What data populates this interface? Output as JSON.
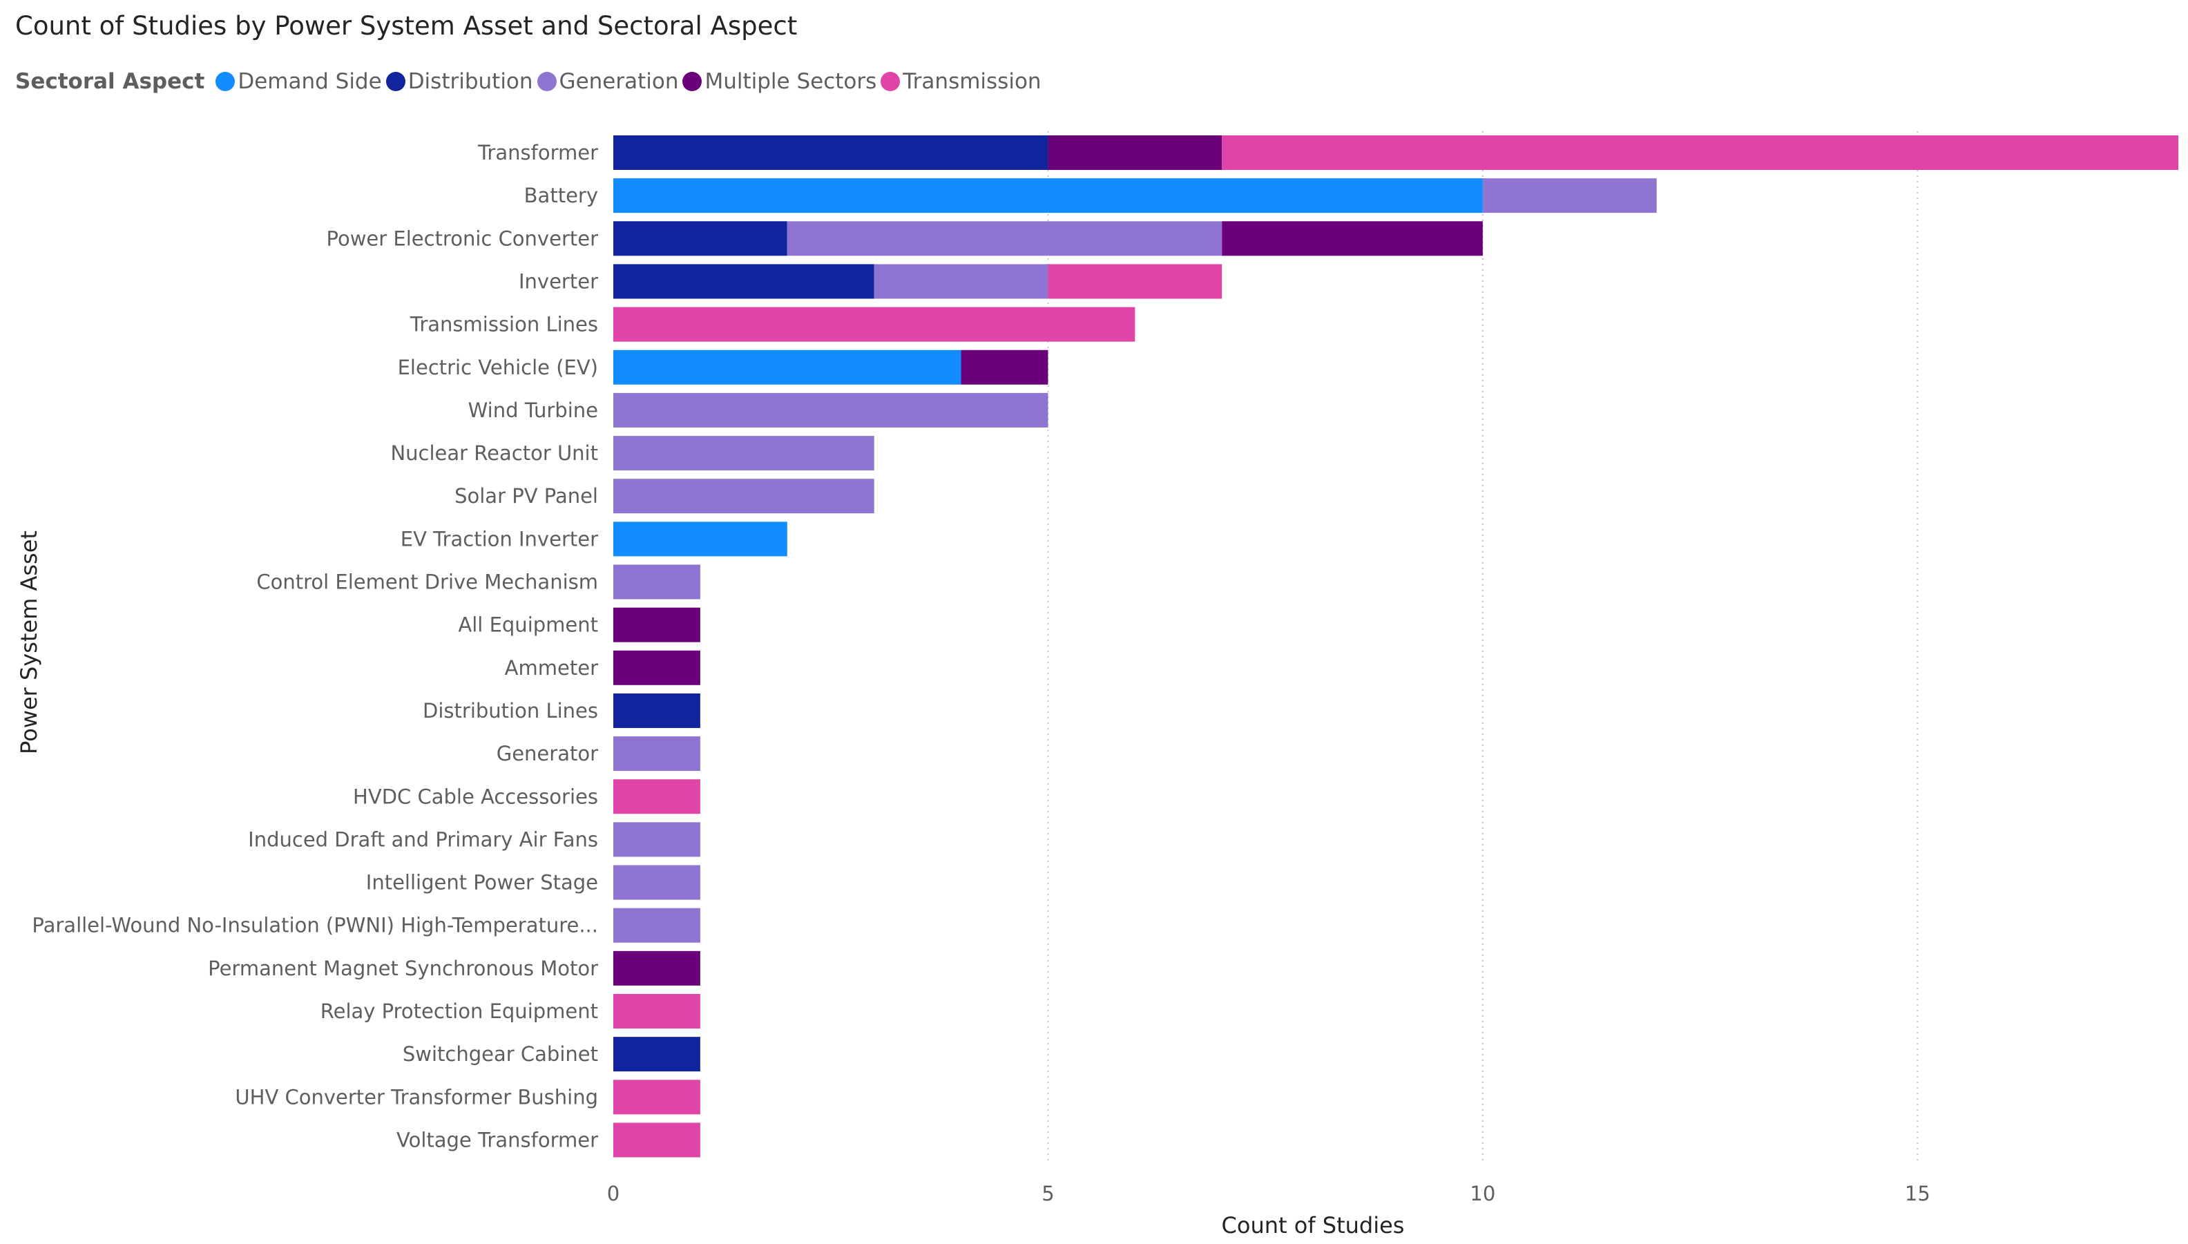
{
  "chart_data": {
    "type": "bar",
    "orientation": "horizontal",
    "stacked": true,
    "title": "Count of Studies by Power System Asset and Sectoral Aspect",
    "xlabel": "Count of Studies",
    "ylabel": "Power System Asset",
    "legend_title": "Sectoral Aspect",
    "legend_position": "top-left",
    "xlim": [
      0,
      18
    ],
    "xticks": [
      0,
      5,
      10,
      15
    ],
    "grid": true,
    "categories": [
      "Transformer",
      "Battery",
      "Power Electronic Converter",
      "Inverter",
      "Transmission Lines",
      "Electric Vehicle (EV)",
      "Wind Turbine",
      "Nuclear Reactor Unit",
      "Solar PV Panel",
      "EV Traction Inverter",
      "Control Element Drive Mechanism",
      "All Equipment",
      "Ammeter",
      "Distribution Lines",
      "Generator",
      "HVDC Cable Accessories",
      "Induced Draft and Primary Air Fans",
      "Intelligent Power Stage",
      "Parallel-Wound No-Insulation (PWNI) High-Temperature...",
      "Permanent Magnet Synchronous Motor",
      "Relay Protection Equipment",
      "Switchgear Cabinet",
      "UHV Converter Transformer Bushing",
      "Voltage Transformer"
    ],
    "series": [
      {
        "name": "Demand Side",
        "color": "#118dff",
        "values": [
          0,
          10,
          0,
          0,
          0,
          4,
          0,
          0,
          0,
          2,
          0,
          0,
          0,
          0,
          0,
          0,
          0,
          0,
          0,
          0,
          0,
          0,
          0,
          0
        ]
      },
      {
        "name": "Distribution",
        "color": "#12239e",
        "values": [
          5,
          0,
          2,
          3,
          0,
          0,
          0,
          0,
          0,
          0,
          0,
          0,
          0,
          1,
          0,
          0,
          0,
          0,
          0,
          0,
          0,
          1,
          0,
          0
        ]
      },
      {
        "name": "Generation",
        "color": "#8f74d2",
        "values": [
          0,
          2,
          5,
          2,
          0,
          0,
          5,
          3,
          3,
          0,
          1,
          0,
          0,
          0,
          1,
          0,
          1,
          1,
          1,
          0,
          0,
          0,
          0,
          0
        ]
      },
      {
        "name": "Multiple Sectors",
        "color": "#6b007b",
        "values": [
          2,
          0,
          3,
          0,
          0,
          1,
          0,
          0,
          0,
          0,
          0,
          1,
          1,
          0,
          0,
          0,
          0,
          0,
          0,
          1,
          0,
          0,
          0,
          0
        ]
      },
      {
        "name": "Transmission",
        "color": "#e044a7",
        "values": [
          11,
          0,
          0,
          2,
          6,
          0,
          0,
          0,
          0,
          0,
          0,
          0,
          0,
          0,
          0,
          1,
          0,
          0,
          0,
          0,
          1,
          0,
          1,
          1
        ]
      }
    ]
  }
}
